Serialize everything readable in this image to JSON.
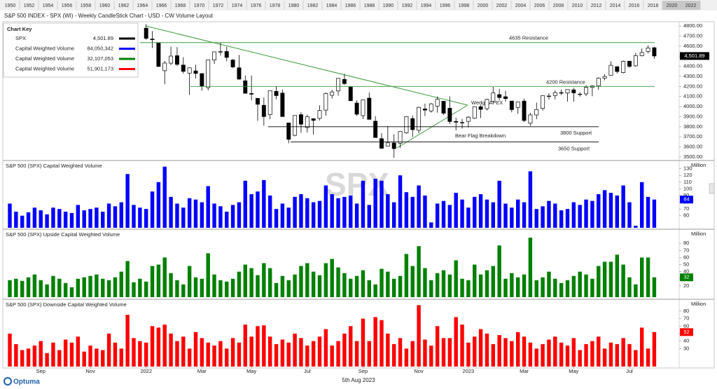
{
  "header": {
    "title": "S&P 500 INDEX - SPX (WI) - Weekly CandleStick Chart - USD - CW Volume Layout",
    "timeline": [
      "1950",
      "1952",
      "1954",
      "1956",
      "1958",
      "1960",
      "1962",
      "1964",
      "1966",
      "1968",
      "1970",
      "1972",
      "1974",
      "1976",
      "1978",
      "1980",
      "1982",
      "1984",
      "1986",
      "1988",
      "1990",
      "1992",
      "1994",
      "1996",
      "1998",
      "2000",
      "2002",
      "2004",
      "2006",
      "2008",
      "2010",
      "2012",
      "2014",
      "2016",
      "2018",
      "2020",
      "2022"
    ]
  },
  "key": {
    "title": "Chart Key",
    "rows": [
      {
        "name": "SPX",
        "value": "4,501.89",
        "color": "#000000"
      },
      {
        "name": "Capital Weighted Volume",
        "value": "84,050,342",
        "color": "#0000ff"
      },
      {
        "name": "Capital Weighted Volume",
        "value": "32,107,053",
        "color": "#008000"
      },
      {
        "name": "Capital Weighted Volume",
        "value": "51,901,173",
        "color": "#ff0000"
      }
    ]
  },
  "footer": {
    "date": "5th Aug 2023",
    "logo": "Optuma"
  },
  "chart_data": [
    {
      "type": "candlestick",
      "open": [
        null,
        null,
        null,
        null,
        null,
        null,
        null,
        null,
        null,
        null,
        null,
        null,
        null,
        null,
        null,
        null,
        null,
        null,
        null,
        null,
        null,
        null,
        4778,
        4670,
        4632,
        4356,
        4431,
        4505,
        4412,
        4332,
        4354,
        4328,
        4188,
        4462,
        4541,
        4547,
        4462,
        4385,
        4256,
        4130,
        4082,
        4013,
        3920,
        4151,
        4134,
        3838,
        3715,
        3920,
        3792,
        3880,
        3883,
        3965,
        4112,
        4155,
        4270,
        4195,
        4035,
        3910,
        4084,
        3855,
        3682,
        3609,
        3639,
        3636,
        3740,
        3881,
        3765,
        3977,
        3956,
        4005,
        4053,
        3984,
        3853,
        3843,
        3853,
        3884,
        3999,
        3979,
        4053,
        4119,
        4098,
        4055,
        3992,
        4055,
        3835,
        3917,
        3982,
        4102,
        4110,
        4139,
        4134,
        4166,
        4123,
        4126,
        4190,
        4205,
        4282,
        4310,
        4396,
        4337,
        4450,
        4404,
        4505,
        4547,
        4584
      ],
      "high": [
        null,
        null,
        null,
        null,
        null,
        null,
        null,
        null,
        null,
        null,
        null,
        null,
        null,
        null,
        null,
        null,
        null,
        null,
        null,
        null,
        null,
        null,
        4818,
        4749,
        4632,
        4453,
        4595,
        4590,
        4490,
        4385,
        4416,
        4329,
        4465,
        4546,
        4637,
        4594,
        4471,
        4513,
        4308,
        4308,
        4082,
        4090,
        4159,
        4204,
        4168,
        3838,
        3913,
        3946,
        3919,
        3880,
        4013,
        4140,
        4167,
        4281,
        4325,
        4204,
        4062,
        4068,
        4140,
        3906,
        3736,
        3807,
        3725,
        3754,
        3905,
        3911,
        3999,
        4029,
        4035,
        4100,
        4053,
        4100,
        3888,
        3878,
        3906,
        4003,
        4015,
        4078,
        4195,
        4176,
        4156,
        4055,
        4048,
        4079,
        3937,
        4040,
        4110,
        4133,
        4163,
        4170,
        4170,
        4186,
        4143,
        4212,
        4212,
        4290,
        4322,
        4448,
        4400,
        4458,
        4456,
        4532,
        4578,
        4607,
        4594
      ],
      "low": [
        null,
        null,
        null,
        null,
        null,
        null,
        null,
        null,
        null,
        null,
        null,
        null,
        null,
        null,
        null,
        null,
        null,
        null,
        null,
        null,
        null,
        null,
        4662,
        4582,
        4395,
        4222,
        4412,
        4401,
        4328,
        4115,
        4279,
        4158,
        4162,
        4424,
        4507,
        4450,
        4381,
        4267,
        4128,
        4062,
        3859,
        3810,
        3876,
        4073,
        3900,
        3636,
        3705,
        3739,
        3743,
        3722,
        3863,
        3910,
        4080,
        4108,
        4218,
        4058,
        3907,
        3876,
        3885,
        3693,
        3584,
        3608,
        3492,
        3590,
        3731,
        3698,
        3735,
        3907,
        3940,
        3940,
        3918,
        3827,
        3764,
        3783,
        3794,
        3877,
        3886,
        3961,
        4038,
        4061,
        4048,
        3943,
        3928,
        3847,
        3809,
        3875,
        3960,
        4069,
        4072,
        4114,
        4049,
        4049,
        4099,
        4104,
        4103,
        4166,
        4261,
        4308,
        4328,
        4329,
        4385,
        4394,
        4499,
        4528,
        4474
      ],
      "close": [
        null,
        null,
        null,
        null,
        null,
        null,
        null,
        null,
        null,
        null,
        null,
        null,
        null,
        null,
        null,
        null,
        null,
        null,
        null,
        null,
        null,
        null,
        4677,
        4663,
        4398,
        4432,
        4501,
        4419,
        4349,
        4385,
        4329,
        4205,
        4463,
        4543,
        4546,
        4488,
        4393,
        4272,
        4132,
        4123,
        4023,
        3901,
        4158,
        4109,
        3901,
        3675,
        3912,
        3825,
        3899,
        3863,
        3962,
        4130,
        4145,
        4280,
        4228,
        4058,
        3924,
        4067,
        3873,
        3693,
        3586,
        3640,
        3583,
        3753,
        3901,
        3771,
        3993,
        3965,
        4027,
        4072,
        3934,
        3852,
        3845,
        3840,
        3895,
        3999,
        3972,
        4071,
        4136,
        4090,
        4079,
        3970,
        4046,
        3862,
        3917,
        3971,
        4109,
        4105,
        4138,
        4133,
        4169,
        4136,
        4124,
        4191,
        4205,
        4282,
        4299,
        4410,
        4348,
        4450,
        4399,
        4505,
        4536,
        4582,
        4501.89
      ],
      "last_label": "4,501.89",
      "ylim": [
        3472,
        4835
      ],
      "yticks": [
        {
          "value": 3500,
          "label": "3500.00"
        },
        {
          "value": 3600,
          "label": "3600.00"
        },
        {
          "value": 3700,
          "label": "3700.00"
        },
        {
          "value": 3800,
          "label": "3800.00"
        },
        {
          "value": 3900,
          "label": "3900.00"
        },
        {
          "value": 4000,
          "label": "4000.00"
        },
        {
          "value": 4100,
          "label": "4100.00"
        },
        {
          "value": 4200,
          "label": "4200.00"
        },
        {
          "value": 4300,
          "label": "4300.00"
        },
        {
          "value": 4400,
          "label": "4400.00"
        },
        {
          "value": 4500,
          "label": "4500.00"
        },
        {
          "value": 4600,
          "label": "4600.00"
        },
        {
          "value": 4700,
          "label": "4700.00"
        },
        {
          "value": 4800,
          "label": "4800.00"
        }
      ],
      "annotations": [
        {
          "label": "4635 Resistance",
          "value": 4635,
          "color": "#3a9a3a"
        },
        {
          "label": "4200 Resistance",
          "value": 4200,
          "color": "#3a9a3a"
        },
        {
          "label": "3800  Support",
          "value": 3800,
          "color": "#000000"
        },
        {
          "label": "3650 Support",
          "value": 3650,
          "color": "#000000"
        }
      ],
      "notes": [
        "Wedge APEX",
        "Bear Flag Breakdown"
      ]
    },
    {
      "type": "bar",
      "title": "S&P 500 (SPX)  Capital Weighted Volume",
      "axis_label": "Million",
      "watermark": "SPX",
      "color": "#0000ff",
      "values": [
        78,
        66,
        60,
        65,
        72,
        68,
        62,
        72,
        70,
        66,
        64,
        76,
        68,
        70,
        72,
        66,
        78,
        74,
        80,
        122,
        76,
        72,
        70,
        96,
        110,
        133,
        88,
        78,
        72,
        86,
        84,
        80,
        104,
        78,
        74,
        66,
        76,
        80,
        112,
        92,
        96,
        113,
        90,
        70,
        78,
        72,
        88,
        92,
        86,
        80,
        82,
        105,
        92,
        86,
        88,
        90,
        78,
        112,
        76,
        115,
        112,
        92,
        80,
        120,
        95,
        88,
        105,
        90,
        50,
        78,
        82,
        76,
        94,
        84,
        72,
        88,
        92,
        84,
        80,
        112,
        78,
        72,
        84,
        80,
        126,
        70,
        74,
        82,
        78,
        68,
        70,
        80,
        76,
        84,
        82,
        92,
        98,
        94,
        90,
        105,
        80,
        45,
        110,
        88,
        84
      ],
      "ylim": [
        42,
        139
      ],
      "yticks": [
        60,
        70,
        80,
        90,
        100,
        110,
        120,
        130
      ]
    },
    {
      "type": "bar",
      "title": "S&P 500 (SPX) Upside Capital Weighted Volume",
      "axis_label": "Million",
      "color": "#008000",
      "values": [
        28,
        30,
        27,
        32,
        36,
        28,
        22,
        34,
        30,
        24,
        18,
        30,
        32,
        34,
        36,
        30,
        28,
        32,
        40,
        55,
        25,
        30,
        26,
        48,
        50,
        60,
        38,
        28,
        22,
        48,
        32,
        30,
        66,
        36,
        28,
        26,
        30,
        40,
        50,
        45,
        35,
        52,
        45,
        24,
        34,
        28,
        36,
        48,
        52,
        40,
        35,
        52,
        58,
        46,
        38,
        30,
        34,
        42,
        28,
        22,
        44,
        40,
        30,
        34,
        65,
        48,
        76,
        45,
        28,
        38,
        42,
        36,
        56,
        30,
        28,
        50,
        36,
        42,
        48,
        77,
        30,
        38,
        32,
        36,
        88,
        28,
        32,
        40,
        30,
        24,
        28,
        34,
        40,
        36,
        30,
        48,
        54,
        54,
        64,
        50,
        32,
        22,
        60,
        60,
        32
      ],
      "ylim": [
        4,
        97
      ],
      "yticks": [
        20,
        30,
        40,
        50,
        60,
        70,
        80
      ]
    },
    {
      "type": "bar",
      "title": "S&P 500 (SPX) Downside Capital Weighted Volume",
      "axis_label": "Million",
      "color": "#ff0000",
      "values": [
        50,
        36,
        28,
        30,
        34,
        40,
        24,
        38,
        28,
        42,
        38,
        46,
        26,
        34,
        30,
        28,
        50,
        38,
        30,
        75,
        44,
        40,
        38,
        60,
        58,
        62,
        50,
        40,
        46,
        30,
        52,
        44,
        38,
        34,
        40,
        30,
        44,
        38,
        62,
        46,
        60,
        61,
        46,
        36,
        42,
        38,
        50,
        44,
        34,
        40,
        46,
        56,
        34,
        40,
        50,
        60,
        40,
        70,
        40,
        72,
        68,
        50,
        36,
        44,
        30,
        40,
        88,
        42,
        34,
        60,
        44,
        44,
        72,
        62,
        38,
        46,
        56,
        50,
        36,
        48,
        44,
        40,
        52,
        46,
        38,
        30,
        36,
        42,
        46,
        38,
        34,
        44,
        28,
        36,
        40,
        46,
        30,
        38,
        36,
        44,
        36,
        28,
        58,
        30,
        52
      ],
      "ylim": [
        6,
        93
      ],
      "yticks": [
        30,
        40,
        50,
        60,
        70,
        80
      ],
      "categories": [
        null,
        null,
        null,
        null,
        null,
        "Sep",
        null,
        null,
        null,
        null,
        null,
        null,
        null,
        "Nov",
        null,
        null,
        null,
        null,
        null,
        null,
        null,
        null,
        "2022",
        null,
        null,
        null,
        null,
        null,
        null,
        null,
        null,
        "Mar",
        null,
        null,
        null,
        null,
        null,
        null,
        null,
        "May",
        null,
        null,
        null,
        null,
        null,
        null,
        null,
        null,
        "Jul",
        null,
        null,
        null,
        null,
        null,
        null,
        null,
        null,
        "Sep",
        null,
        null,
        null,
        null,
        null,
        null,
        null,
        null,
        "Nov",
        null,
        null,
        null,
        null,
        null,
        null,
        null,
        "2023",
        null,
        null,
        null,
        null,
        null,
        null,
        null,
        null,
        "Mar",
        null,
        null,
        null,
        null,
        null,
        null,
        null,
        "May",
        null,
        null,
        null,
        null,
        null,
        null,
        null,
        null,
        "Jul",
        null,
        null,
        null,
        null
      ]
    }
  ]
}
